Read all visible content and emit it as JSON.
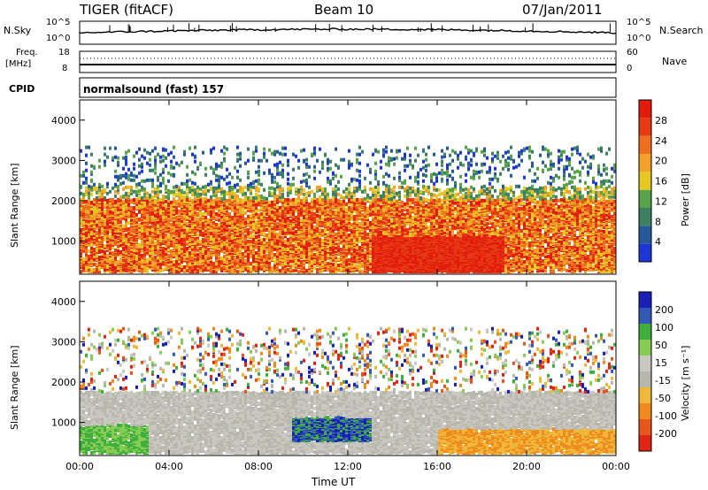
{
  "header": {
    "radar": "TIGER (fitACF)",
    "beam": "Beam 10",
    "date": "07/Jan/2011"
  },
  "params": {
    "nsky_label": "N.Sky",
    "nsky_ticks": [
      "10^5",
      "10^0"
    ],
    "nsearch_label": "N.Search",
    "nsearch_ticks": [
      "10^5",
      "10^0"
    ],
    "freq_label": "Freq.",
    "freq_unit": "[MHz]",
    "freq_ticks": [
      "18",
      "8"
    ],
    "nave_label": "Nave",
    "nave_ticks": [
      "60",
      "0"
    ],
    "cpid_label": "CPID",
    "cpid_text": "normalsound (fast) 157"
  },
  "colors": {
    "power_scale": [
      "#1e36d6",
      "#27589a",
      "#3c7f63",
      "#58a24a",
      "#e6c823",
      "#f2a12a",
      "#ee6f1e",
      "#e63a14",
      "#e21c0c"
    ],
    "velocity_scale": [
      "#1a1fb8",
      "#3359b6",
      "#3fae3c",
      "#86cc55",
      "#c9c8c0",
      "#b8b7ae",
      "#f0b83a",
      "#ef8a1e",
      "#e6561a",
      "#e02514"
    ]
  },
  "chart_data": [
    {
      "type": "heatmap",
      "title": "",
      "xlabel": "",
      "ylabel": "Slant Range [km]",
      "xlim_hours": [
        0,
        24
      ],
      "ylim": [
        180,
        4500
      ],
      "x_ticks": [
        "00:00",
        "04:00",
        "08:00",
        "12:00",
        "16:00",
        "20:00",
        "00:00"
      ],
      "y_ticks": [
        "1000",
        "2000",
        "3000",
        "4000"
      ],
      "colorbar": {
        "label": "Power [dB]",
        "ticks": [
          "4",
          "8",
          "12",
          "16",
          "20",
          "24",
          "28"
        ],
        "range": [
          0,
          30
        ]
      },
      "description_bands_km": [
        {
          "start_h": 0,
          "end_h": 24,
          "range_min": 200,
          "range_max": 2000,
          "dominant_dB": 22
        },
        {
          "start_h": 13,
          "end_h": 19,
          "range_min": 200,
          "range_max": 1100,
          "dominant_dB": 30
        },
        {
          "start_h": 1,
          "end_h": 23,
          "range_min": 2300,
          "range_max": 3300,
          "dominant_dB": 8
        }
      ]
    },
    {
      "type": "heatmap",
      "title": "",
      "xlabel": "Time UT",
      "ylabel": "Slant Range [km]",
      "xlim_hours": [
        0,
        24
      ],
      "ylim": [
        180,
        4500
      ],
      "x_ticks": [
        "00:00",
        "04:00",
        "08:00",
        "12:00",
        "16:00",
        "20:00",
        "00:00"
      ],
      "y_ticks": [
        "1000",
        "2000",
        "3000",
        "4000"
      ],
      "colorbar": {
        "label": "Velocity [m s⁻¹]",
        "ticks": [
          "200",
          "100",
          "50",
          "15",
          "-15",
          "-50",
          "-100",
          "-200"
        ],
        "range": [
          -250,
          250
        ]
      },
      "description_bands_km": [
        {
          "start_h": 0,
          "end_h": 24,
          "range_min": 200,
          "range_max": 1700,
          "dominant_ms": 0
        },
        {
          "start_h": 9.5,
          "end_h": 13,
          "range_min": 500,
          "range_max": 1100,
          "dominant_ms": 150
        },
        {
          "start_h": 0,
          "end_h": 3,
          "range_min": 200,
          "range_max": 900,
          "dominant_ms": 60
        },
        {
          "start_h": 16,
          "end_h": 24,
          "range_min": 200,
          "range_max": 800,
          "dominant_ms": -60
        }
      ]
    }
  ]
}
